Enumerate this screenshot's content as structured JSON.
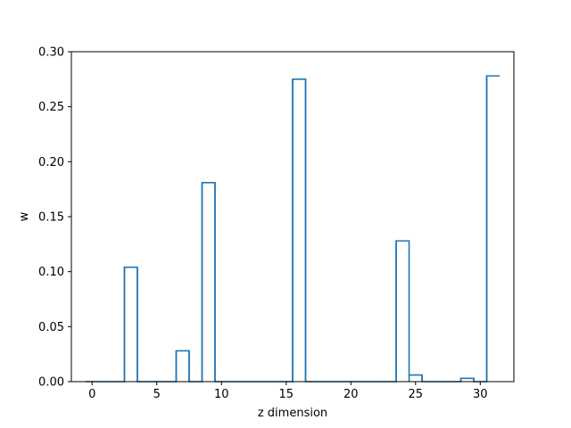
{
  "chart_data": {
    "type": "bar",
    "style": "step-outline",
    "xlabel": "z dimension",
    "ylabel": "w",
    "xlim": [
      -1.6,
      32.6
    ],
    "ylim": [
      0.0,
      0.3
    ],
    "xticks": [
      0,
      5,
      10,
      15,
      20,
      25,
      30
    ],
    "xtick_labels": [
      "0",
      "5",
      "10",
      "15",
      "20",
      "25",
      "30"
    ],
    "yticks": [
      0.0,
      0.05,
      0.1,
      0.15,
      0.2,
      0.25,
      0.3
    ],
    "ytick_labels": [
      "0.00",
      "0.05",
      "0.10",
      "0.15",
      "0.20",
      "0.25",
      "0.30"
    ],
    "grid": false,
    "series_color": "#1f77b4",
    "x": [
      0,
      1,
      2,
      3,
      4,
      5,
      6,
      7,
      8,
      9,
      10,
      11,
      12,
      13,
      14,
      15,
      16,
      17,
      18,
      19,
      20,
      21,
      22,
      23,
      24,
      25,
      26,
      27,
      28,
      29,
      30,
      31
    ],
    "values": [
      0,
      0,
      0,
      0.104,
      0,
      0,
      0,
      0.028,
      0,
      0.181,
      0,
      0,
      0,
      0,
      0,
      0,
      0.275,
      0,
      0,
      0,
      0,
      0,
      0,
      0,
      0.128,
      0.006,
      0,
      0,
      0,
      0.003,
      0,
      0.278
    ]
  }
}
